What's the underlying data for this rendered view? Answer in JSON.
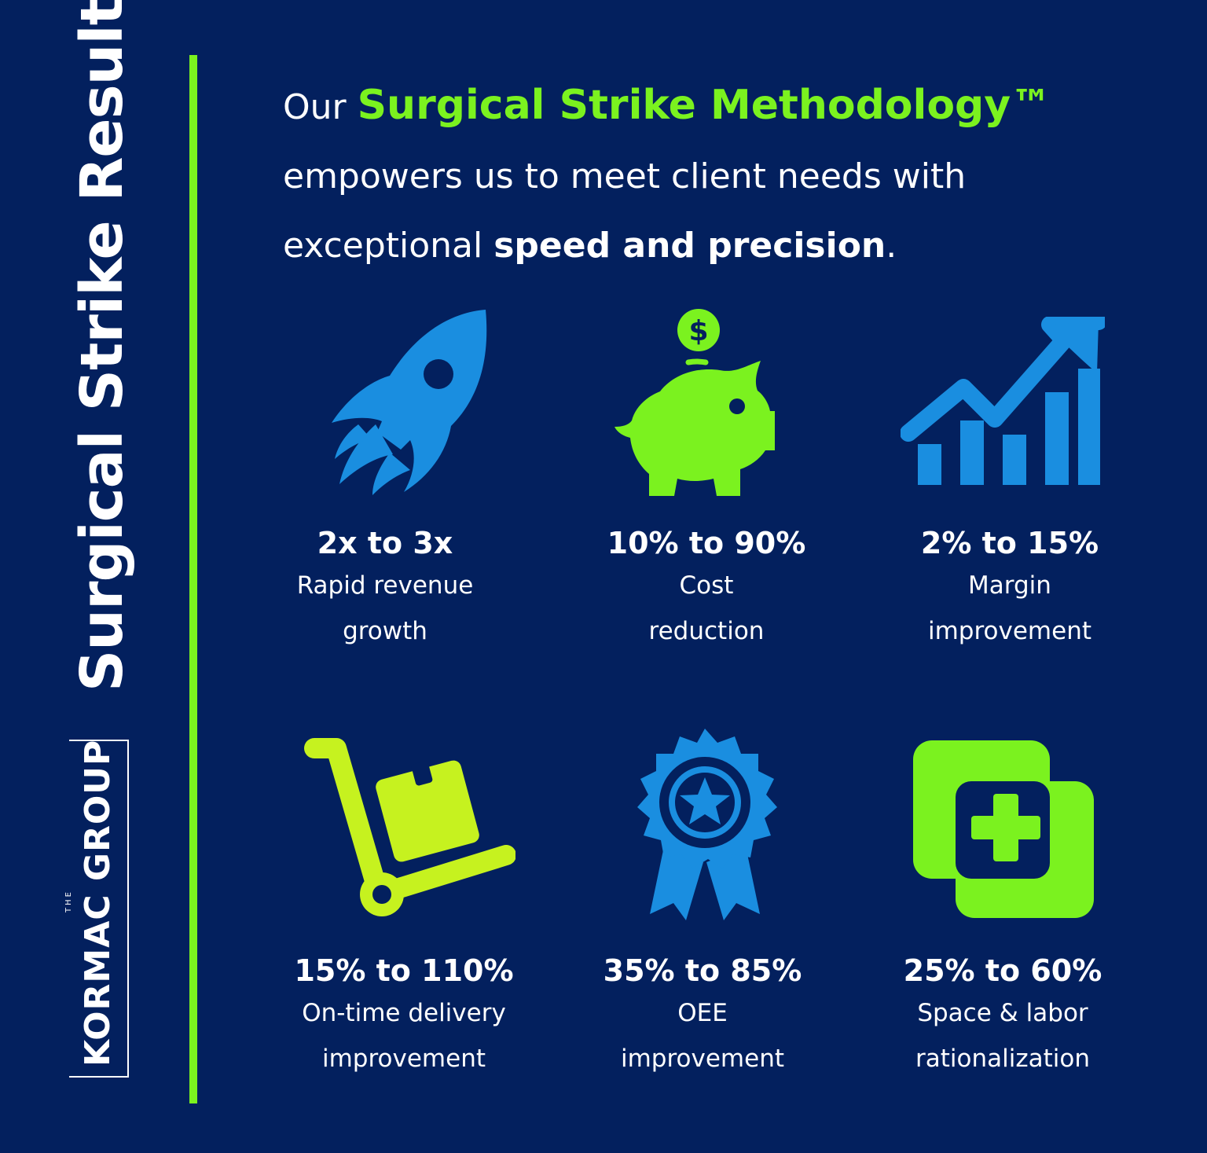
{
  "sidebar": {
    "title": "Surgical Strike Results",
    "logo": {
      "small": "THE",
      "name": "KORMAC GROUP"
    }
  },
  "headline": {
    "part1": "Our ",
    "highlight": "Surgical Strike Methodology™",
    "part2": "empowers us to meet client needs with",
    "part3": "exceptional ",
    "bold": "speed and precision",
    "part4": "."
  },
  "colors": {
    "background": "#03205e",
    "accent_green": "#7bf21f",
    "accent_blue": "#1a8ee0"
  },
  "stats": [
    {
      "icon": "rocket-icon",
      "value": "2x to 3x",
      "line1": "Rapid revenue",
      "line2": "growth"
    },
    {
      "icon": "piggy-bank-icon",
      "value": "10% to 90%",
      "line1": "Cost",
      "line2": "reduction"
    },
    {
      "icon": "growth-chart-icon",
      "value": "2% to 15%",
      "line1": "Margin",
      "line2": "improvement"
    },
    {
      "icon": "hand-truck-icon",
      "value": "15% to 110%",
      "line1": "On-time delivery",
      "line2": "improvement"
    },
    {
      "icon": "award-ribbon-icon",
      "value": "35% to 85%",
      "line1": "OEE",
      "line2": "improvement"
    },
    {
      "icon": "medical-cross-icon",
      "value": "25% to 60%",
      "line1": "Space & labor",
      "line2": "rationalization"
    }
  ]
}
